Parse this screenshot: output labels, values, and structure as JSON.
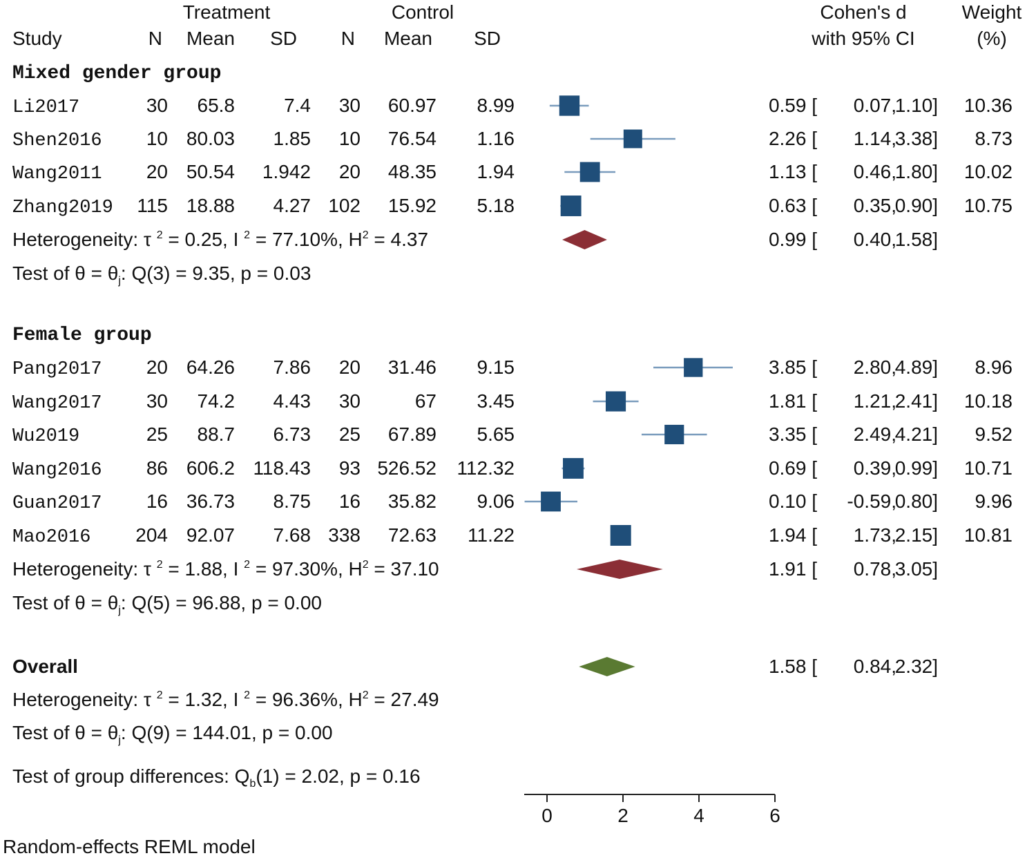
{
  "chart_data": {
    "type": "forest",
    "header": {
      "treatment": "Treatment",
      "control": "Control",
      "study": "Study",
      "n": "N",
      "mean": "Mean",
      "sd": "SD",
      "effect_line1": "Cohen's d",
      "effect_line2": "with 95% CI",
      "weight_line1": "Weight",
      "weight_line2": "(%)"
    },
    "groups": [
      {
        "name": "Mixed gender group",
        "studies": [
          {
            "study": "Li2017",
            "t_n": "30",
            "t_mean": "65.8",
            "t_sd": "7.4",
            "c_n": "30",
            "c_mean": "60.97",
            "c_sd": "8.99",
            "d": 0.59,
            "lo": 0.07,
            "hi": 1.1,
            "d_text": "0.59",
            "lo_text": "0.07",
            "hi_text": "1.10",
            "weight": "10.36"
          },
          {
            "study": "Shen2016",
            "t_n": "10",
            "t_mean": "80.03",
            "t_sd": "1.85",
            "c_n": "10",
            "c_mean": "76.54",
            "c_sd": "1.16",
            "d": 2.26,
            "lo": 1.14,
            "hi": 3.38,
            "d_text": "2.26",
            "lo_text": "1.14",
            "hi_text": "3.38",
            "weight": "8.73"
          },
          {
            "study": "Wang2011",
            "t_n": "20",
            "t_mean": "50.54",
            "t_sd": "1.942",
            "c_n": "20",
            "c_mean": "48.35",
            "c_sd": "1.94",
            "d": 1.13,
            "lo": 0.46,
            "hi": 1.8,
            "d_text": "1.13",
            "lo_text": "0.46",
            "hi_text": "1.80",
            "weight": "10.02"
          },
          {
            "study": "Zhang2019",
            "t_n": "115",
            "t_mean": "18.88",
            "t_sd": "4.27",
            "c_n": "102",
            "c_mean": "15.92",
            "c_sd": "5.18",
            "d": 0.63,
            "lo": 0.35,
            "hi": 0.9,
            "d_text": "0.63",
            "lo_text": "0.35",
            "hi_text": "0.90",
            "weight": "10.75"
          }
        ],
        "summary": {
          "d": 0.99,
          "lo": 0.4,
          "hi": 1.58,
          "d_text": "0.99",
          "lo_text": "0.40",
          "hi_text": "1.58"
        },
        "het": {
          "tau2": "0.25",
          "i2": "77.10%",
          "h2": "4.37"
        },
        "test": {
          "df": "3",
          "q": "9.35",
          "p": "0.03"
        }
      },
      {
        "name": "Female group",
        "studies": [
          {
            "study": "Pang2017",
            "t_n": "20",
            "t_mean": "64.26",
            "t_sd": "7.86",
            "c_n": "20",
            "c_mean": "31.46",
            "c_sd": "9.15",
            "d": 3.85,
            "lo": 2.8,
            "hi": 4.89,
            "d_text": "3.85",
            "lo_text": "2.80",
            "hi_text": "4.89",
            "weight": "8.96"
          },
          {
            "study": "Wang2017",
            "t_n": "30",
            "t_mean": "74.2",
            "t_sd": "4.43",
            "c_n": "30",
            "c_mean": "67",
            "c_sd": "3.45",
            "d": 1.81,
            "lo": 1.21,
            "hi": 2.41,
            "d_text": "1.81",
            "lo_text": "1.21",
            "hi_text": "2.41",
            "weight": "10.18"
          },
          {
            "study": "Wu2019",
            "t_n": "25",
            "t_mean": "88.7",
            "t_sd": "6.73",
            "c_n": "25",
            "c_mean": "67.89",
            "c_sd": "5.65",
            "d": 3.35,
            "lo": 2.49,
            "hi": 4.21,
            "d_text": "3.35",
            "lo_text": "2.49",
            "hi_text": "4.21",
            "weight": "9.52"
          },
          {
            "study": "Wang2016",
            "t_n": "86",
            "t_mean": "606.2",
            "t_sd": "118.43",
            "c_n": "93",
            "c_mean": "526.52",
            "c_sd": "112.32",
            "d": 0.69,
            "lo": 0.39,
            "hi": 0.99,
            "d_text": "0.69",
            "lo_text": "0.39",
            "hi_text": "0.99",
            "weight": "10.71"
          },
          {
            "study": "Guan2017",
            "t_n": "16",
            "t_mean": "36.73",
            "t_sd": "8.75",
            "c_n": "16",
            "c_mean": "35.82",
            "c_sd": "9.06",
            "d": 0.1,
            "lo": -0.59,
            "hi": 0.8,
            "d_text": "0.10",
            "lo_text": "-0.59",
            "hi_text": "0.80",
            "weight": "9.96"
          },
          {
            "study": "Mao2016",
            "t_n": "204",
            "t_mean": "92.07",
            "t_sd": "7.68",
            "c_n": "338",
            "c_mean": "72.63",
            "c_sd": "11.22",
            "d": 1.94,
            "lo": 1.73,
            "hi": 2.15,
            "d_text": "1.94",
            "lo_text": "1.73",
            "hi_text": "2.15",
            "weight": "10.81"
          }
        ],
        "summary": {
          "d": 1.91,
          "lo": 0.78,
          "hi": 3.05,
          "d_text": "1.91",
          "lo_text": "0.78",
          "hi_text": "3.05"
        },
        "het": {
          "tau2": "1.88",
          "i2": "97.30%",
          "h2": "37.10"
        },
        "test": {
          "df": "5",
          "q": "96.88",
          "p": "0.00"
        }
      }
    ],
    "overall": {
      "label": "Overall",
      "d": 1.58,
      "lo": 0.84,
      "hi": 2.32,
      "d_text": "1.58",
      "lo_text": "0.84",
      "hi_text": "2.32",
      "het": {
        "tau2": "1.32",
        "i2": "96.36%",
        "h2": "27.49"
      },
      "test": {
        "df": "9",
        "q": "144.01",
        "p": "0.00"
      }
    },
    "group_diff": {
      "df": "1",
      "q": "2.02",
      "p": "0.16"
    },
    "x_ticks": [
      0,
      2,
      4,
      6
    ],
    "xlim": [
      -0.6,
      6
    ],
    "footer": "Random-effects REML model",
    "colors": {
      "square": "#1f4e79",
      "ci_line": "#7a9cbd",
      "group_diamond": "#8b2e35",
      "overall_diamond": "#5a7a32"
    }
  }
}
